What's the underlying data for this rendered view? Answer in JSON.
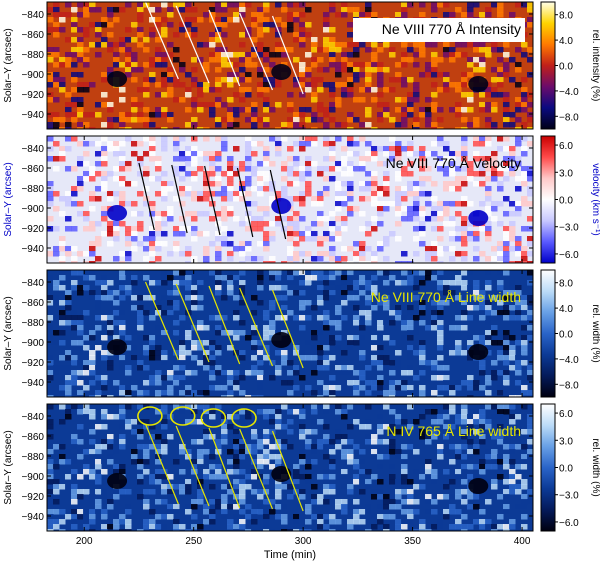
{
  "chart_data": [
    {
      "type": "heatmap",
      "title": "Ne VIII 770 Å Intensity",
      "ylabel": "Solar–Y (arcsec)",
      "xlim": [
        183,
        405
      ],
      "ylim": [
        -955,
        -828
      ],
      "yticks": [
        -840,
        -860,
        -880,
        -900,
        -920,
        -940
      ],
      "colorbar": {
        "label": "rel. intensity (%)",
        "ticks": [
          "8.0",
          "4.0",
          "0.0",
          "−4.0",
          "−8.0"
        ],
        "range": [
          -10,
          10
        ],
        "colors": [
          "#000018",
          "#0a0a80",
          "#6b0c6b",
          "#c0201a",
          "#ff7a00",
          "#ffd400",
          "#ffffe8"
        ]
      },
      "line_color": "#ffffff",
      "annotation_bg": "#ffffff",
      "annotation_color": "#000000",
      "background": "#c04010",
      "lines": [
        [
          [
            228,
            -828
          ],
          [
            243,
            -905
          ]
        ],
        [
          [
            242,
            -832
          ],
          [
            257,
            -909
          ]
        ],
        [
          [
            257,
            -836
          ],
          [
            271,
            -912
          ]
        ],
        [
          [
            271,
            -839
          ],
          [
            286,
            -916
          ]
        ],
        [
          [
            286,
            -842
          ],
          [
            300,
            -920
          ]
        ]
      ]
    },
    {
      "type": "heatmap",
      "title": "Ne VIII 770 Å Velocity",
      "ylabel": "Solar–Y (arcsec)",
      "ylabel_color": "#0000c8",
      "xlim": [
        183,
        405
      ],
      "ylim": [
        -955,
        -828
      ],
      "yticks": [
        -840,
        -860,
        -880,
        -900,
        -920,
        -940
      ],
      "colorbar": {
        "label": "velocity (km s⁻¹)",
        "label_color": "#0000c8",
        "ticks": [
          "6.0",
          "3.0",
          "0.0",
          "−3.0",
          "−6.0"
        ],
        "range": [
          -7,
          7
        ],
        "colors": [
          "#0000c8",
          "#5a5aff",
          "#c8c8ff",
          "#ffffff",
          "#ffc8c8",
          "#ff4a4a",
          "#c80000"
        ]
      },
      "line_color": "#000000",
      "annotation_color": "#000000",
      "background": "#e6e8f8",
      "lines": [
        [
          [
            225,
            -855
          ],
          [
            232,
            -922
          ]
        ],
        [
          [
            240,
            -857
          ],
          [
            247,
            -925
          ]
        ],
        [
          [
            255,
            -858
          ],
          [
            262,
            -927
          ]
        ],
        [
          [
            270,
            -860
          ],
          [
            277,
            -929
          ]
        ],
        [
          [
            285,
            -862
          ],
          [
            292,
            -931
          ]
        ]
      ]
    },
    {
      "type": "heatmap",
      "title": "Ne VIII 770 Å Line width",
      "ylabel": "Solar–Y (arcsec)",
      "xlim": [
        183,
        405
      ],
      "ylim": [
        -955,
        -828
      ],
      "yticks": [
        -840,
        -860,
        -880,
        -900,
        -920,
        -940
      ],
      "colorbar": {
        "label": "rel. width (%)",
        "ticks": [
          "8.0",
          "4.0",
          "0.0",
          "−4.0",
          "−8.0"
        ],
        "range": [
          -10,
          10
        ],
        "colors": [
          "#000010",
          "#041a5a",
          "#0c3a96",
          "#2a64c8",
          "#68a0e6",
          "#bcdcf8",
          "#ffffff"
        ]
      },
      "line_color": "#e6e600",
      "annotation_color": "#e6e600",
      "background": "#0c3a96",
      "lines": [
        [
          [
            228,
            -840
          ],
          [
            243,
            -918
          ]
        ],
        [
          [
            242,
            -842
          ],
          [
            257,
            -920
          ]
        ],
        [
          [
            257,
            -844
          ],
          [
            271,
            -922
          ]
        ],
        [
          [
            271,
            -846
          ],
          [
            286,
            -924
          ]
        ],
        [
          [
            286,
            -848
          ],
          [
            300,
            -926
          ]
        ]
      ]
    },
    {
      "type": "heatmap",
      "title": "N IV 765 Å Line width",
      "ylabel": "Solar–Y (arcsec)",
      "xlabel": "Time (min)",
      "xlim": [
        183,
        405
      ],
      "ylim": [
        -955,
        -828
      ],
      "xticks": [
        200,
        250,
        300,
        350,
        400
      ],
      "yticks": [
        -840,
        -860,
        -880,
        -900,
        -920,
        -940
      ],
      "colorbar": {
        "label": "rel. width (%)",
        "ticks": [
          "6.0",
          "3.0",
          "0.0",
          "−3.0",
          "−6.0"
        ],
        "range": [
          -7,
          7
        ],
        "colors": [
          "#000010",
          "#041a5a",
          "#0c3a96",
          "#2a64c8",
          "#68a0e6",
          "#bcdcf8",
          "#ffffff"
        ]
      },
      "line_color": "#e6e600",
      "annotation_color": "#e6e600",
      "background": "#0c3a96",
      "lines": [
        [
          [
            228,
            -848
          ],
          [
            243,
            -928
          ]
        ],
        [
          [
            242,
            -850
          ],
          [
            257,
            -930
          ]
        ],
        [
          [
            257,
            -852
          ],
          [
            271,
            -932
          ]
        ],
        [
          [
            271,
            -853
          ],
          [
            286,
            -933
          ]
        ],
        [
          [
            286,
            -855
          ],
          [
            300,
            -935
          ]
        ]
      ],
      "ellipses": [
        [
          230,
          -840
        ],
        [
          245,
          -840
        ],
        [
          259,
          -842
        ],
        [
          273,
          -842
        ]
      ]
    }
  ]
}
